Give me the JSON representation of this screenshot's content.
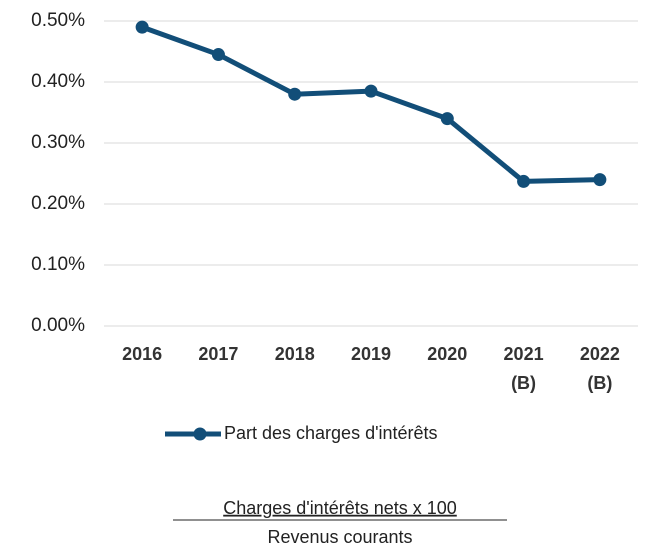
{
  "chart_data": {
    "type": "line",
    "categories": [
      [
        "2016"
      ],
      [
        "2017"
      ],
      [
        "2018"
      ],
      [
        "2019"
      ],
      [
        "2020"
      ],
      [
        "2021",
        "(B)"
      ],
      [
        "2022",
        "(B)"
      ]
    ],
    "series": [
      {
        "name": "Part des charges d'intérêts",
        "color": "#124e78",
        "values": [
          0.49,
          0.445,
          0.38,
          0.385,
          0.34,
          0.237,
          0.24
        ]
      }
    ],
    "ylim": [
      0,
      0.5
    ],
    "yticks": [
      {
        "value": 0,
        "label": "0.00%"
      },
      {
        "value": 0.1,
        "label": "0.10%"
      },
      {
        "value": 0.2,
        "label": "0.20%"
      },
      {
        "value": 0.3,
        "label": "0.30%"
      },
      {
        "value": 0.4,
        "label": "0.40%"
      },
      {
        "value": 0.5,
        "label": "0.50%"
      }
    ],
    "grid": true,
    "legend": "bottom"
  },
  "formula": {
    "numerator": "Charges d'intérêts nets x 100",
    "denominator": "Revenus courants"
  }
}
